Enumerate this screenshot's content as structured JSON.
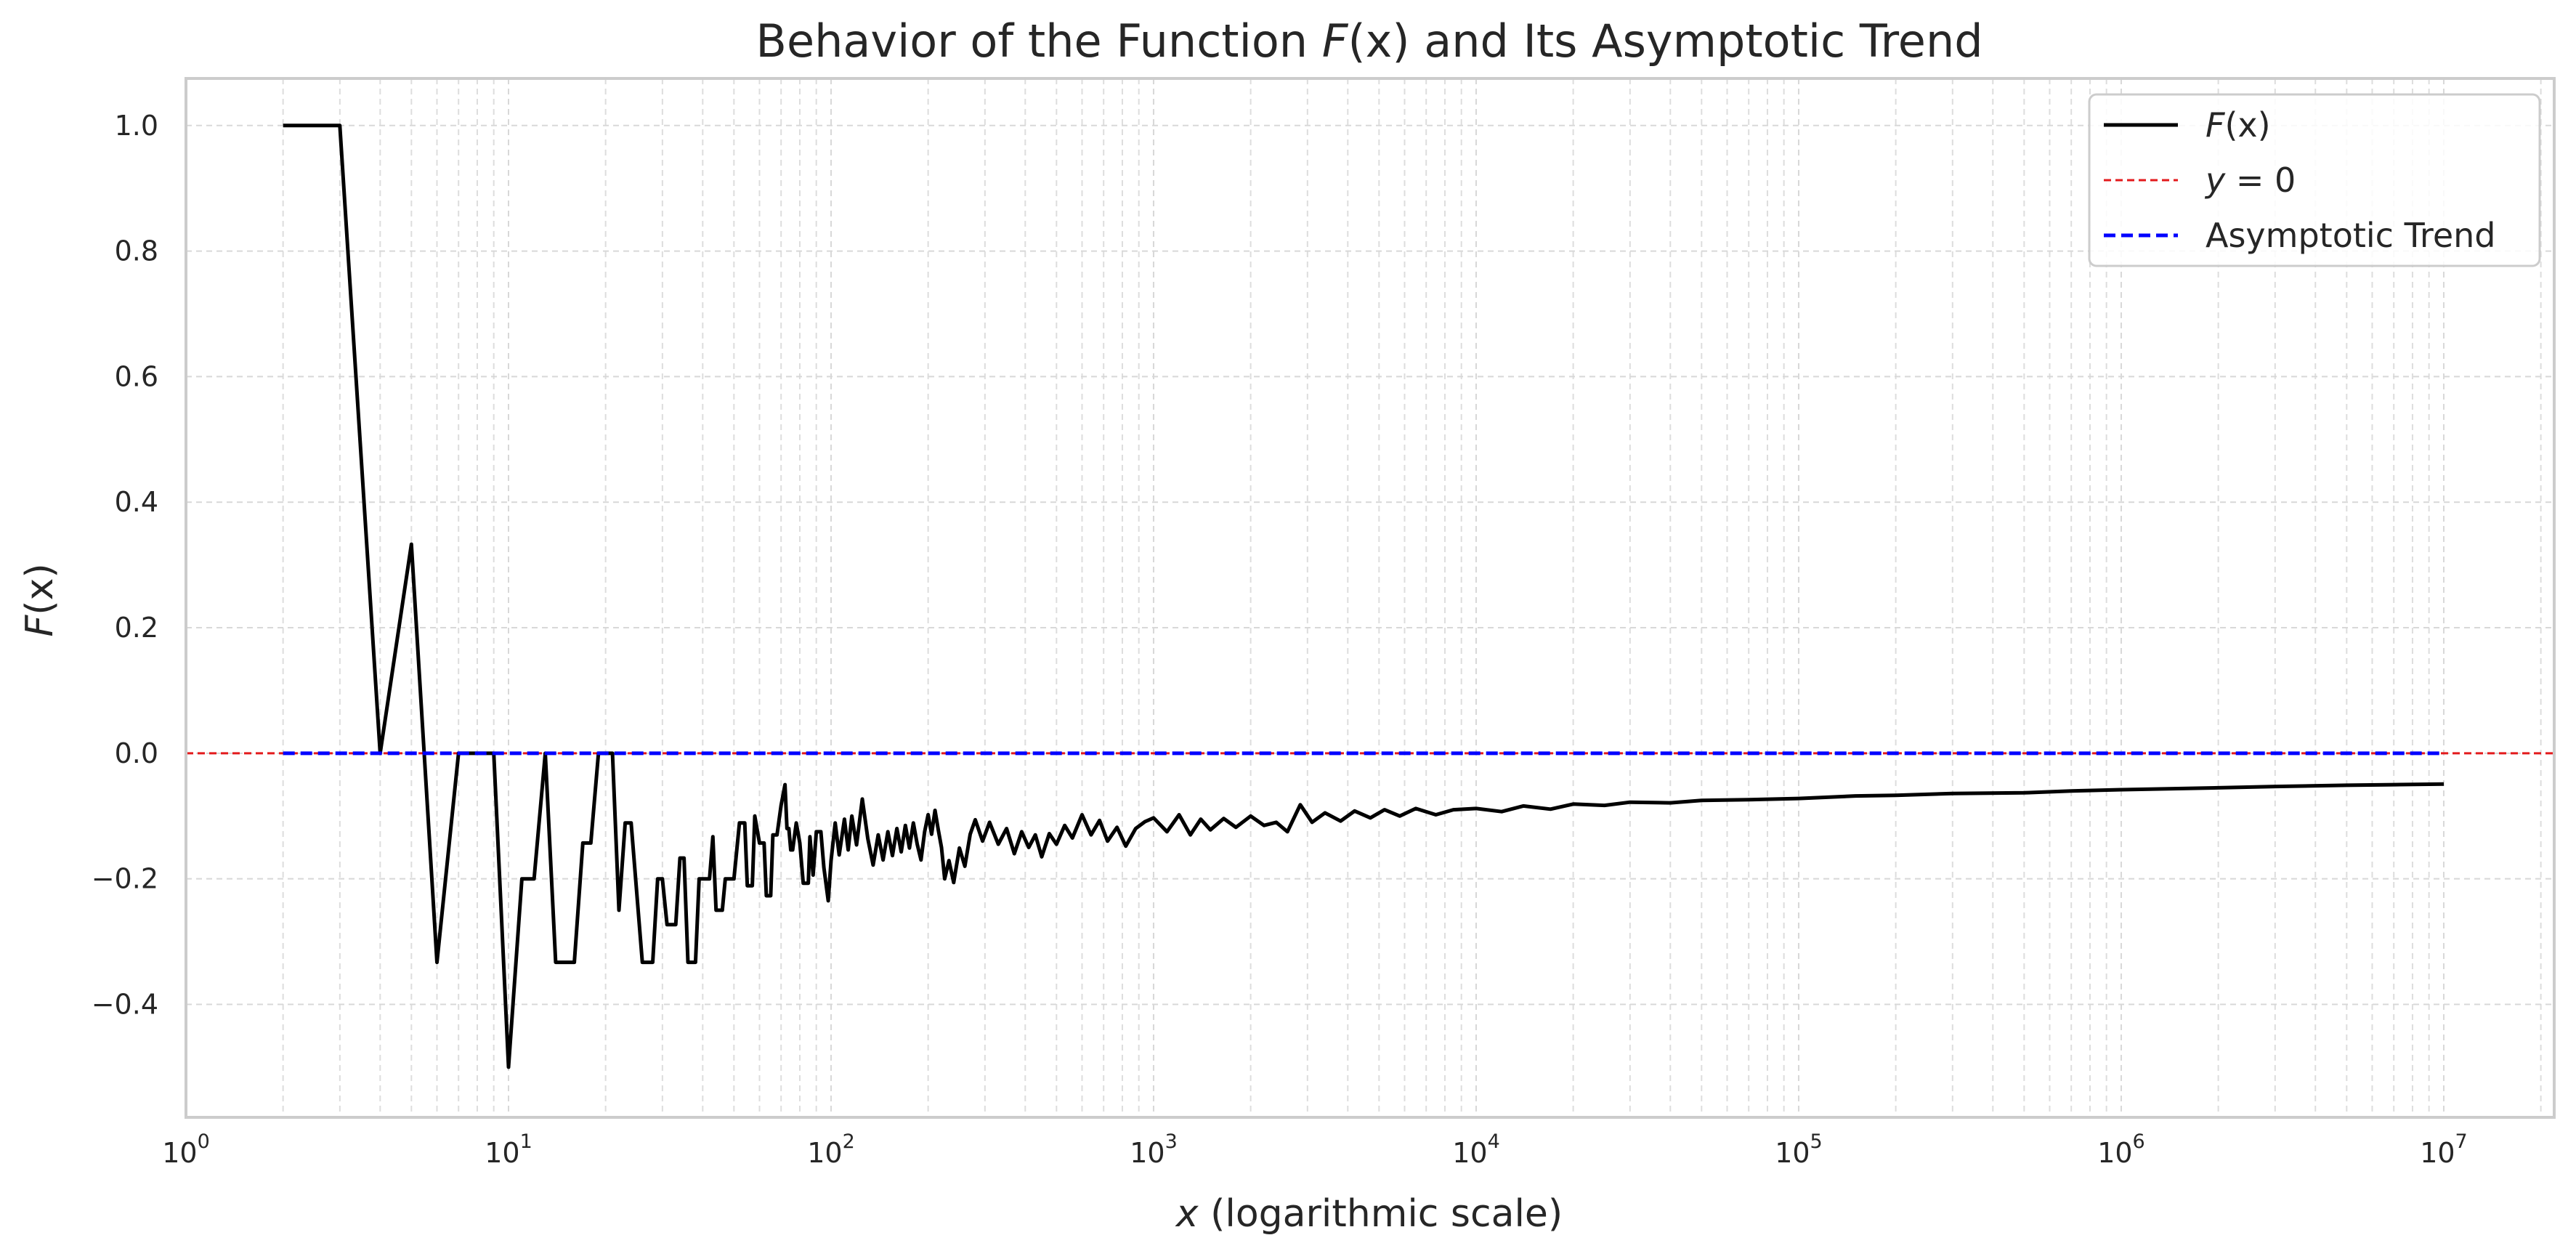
{
  "chart_data": {
    "type": "line",
    "title": {
      "pre": "Behavior of the Function ",
      "fn": "F",
      "fn_arg": "(x)",
      "post": " and Its Asymptotic Trend"
    },
    "xlabel": {
      "var": "x",
      "rest": " (logarithmic scale)"
    },
    "ylabel": {
      "fn": "F",
      "arg": "(x)"
    },
    "x_scale": "log",
    "xlim": [
      1,
      22000000
    ],
    "ylim": [
      -0.58,
      1.075
    ],
    "x_ticks": [
      {
        "base": "10",
        "exp": "0",
        "value": 1
      },
      {
        "base": "10",
        "exp": "1",
        "value": 10
      },
      {
        "base": "10",
        "exp": "2",
        "value": 100
      },
      {
        "base": "10",
        "exp": "3",
        "value": 1000
      },
      {
        "base": "10",
        "exp": "4",
        "value": 10000
      },
      {
        "base": "10",
        "exp": "5",
        "value": 100000
      },
      {
        "base": "10",
        "exp": "6",
        "value": 1000000
      },
      {
        "base": "10",
        "exp": "7",
        "value": 10000000
      }
    ],
    "y_ticks": [
      {
        "value": 1.0,
        "label": "1.0"
      },
      {
        "value": 0.8,
        "label": "0.8"
      },
      {
        "value": 0.6,
        "label": "0.6"
      },
      {
        "value": 0.4,
        "label": "0.4"
      },
      {
        "value": 0.2,
        "label": "0.2"
      },
      {
        "value": 0.0,
        "label": "0.0"
      },
      {
        "value": -0.2,
        "label": "−0.2"
      },
      {
        "value": -0.4,
        "label": "−0.4"
      }
    ],
    "grid": true,
    "legend_position": "top-right",
    "series": [
      {
        "key": "fx",
        "legend": {
          "fn": "F",
          "arg": "(x)"
        },
        "color": "#000000",
        "style": "solid",
        "points": [
          [
            2,
            1.0
          ],
          [
            3,
            1.0
          ],
          [
            4,
            0.0
          ],
          [
            5,
            0.333
          ],
          [
            6,
            -0.333
          ],
          [
            7,
            0.0
          ],
          [
            8,
            0.0
          ],
          [
            9,
            0.0
          ],
          [
            10,
            -0.5
          ],
          [
            11,
            -0.2
          ],
          [
            12,
            -0.2
          ],
          [
            13,
            0.0
          ],
          [
            14,
            -0.333
          ],
          [
            15,
            -0.333
          ],
          [
            16,
            -0.333
          ],
          [
            17,
            -0.143
          ],
          [
            18,
            -0.143
          ],
          [
            19,
            0.0
          ],
          [
            20,
            0.0
          ],
          [
            21,
            0.0
          ],
          [
            22,
            -0.25
          ],
          [
            23,
            -0.111
          ],
          [
            24,
            -0.111
          ],
          [
            26,
            -0.333
          ],
          [
            28,
            -0.333
          ],
          [
            29,
            -0.2
          ],
          [
            30,
            -0.2
          ],
          [
            31,
            -0.273
          ],
          [
            33,
            -0.273
          ],
          [
            34,
            -0.167
          ],
          [
            35,
            -0.167
          ],
          [
            36,
            -0.333
          ],
          [
            38,
            -0.333
          ],
          [
            39,
            -0.2
          ],
          [
            40,
            -0.2
          ],
          [
            41,
            -0.2
          ],
          [
            42,
            -0.2
          ],
          [
            43,
            -0.133
          ],
          [
            44,
            -0.25
          ],
          [
            46,
            -0.25
          ],
          [
            47,
            -0.2
          ],
          [
            50,
            -0.2
          ],
          [
            52,
            -0.111
          ],
          [
            54,
            -0.111
          ],
          [
            55,
            -0.211
          ],
          [
            57,
            -0.211
          ],
          [
            58,
            -0.1
          ],
          [
            60,
            -0.143
          ],
          [
            62,
            -0.143
          ],
          [
            63,
            -0.227
          ],
          [
            65,
            -0.227
          ],
          [
            66,
            -0.13
          ],
          [
            68,
            -0.13
          ],
          [
            70,
            -0.083
          ],
          [
            72,
            -0.05
          ],
          [
            73,
            -0.12
          ],
          [
            74,
            -0.12
          ],
          [
            75,
            -0.154
          ],
          [
            76,
            -0.154
          ],
          [
            78,
            -0.111
          ],
          [
            80,
            -0.143
          ],
          [
            82,
            -0.207
          ],
          [
            85,
            -0.207
          ],
          [
            86,
            -0.133
          ],
          [
            88,
            -0.194
          ],
          [
            90,
            -0.125
          ],
          [
            93,
            -0.125
          ],
          [
            95,
            -0.182
          ],
          [
            98,
            -0.235
          ],
          [
            100,
            -0.171
          ],
          [
            103,
            -0.111
          ],
          [
            106,
            -0.162
          ],
          [
            110,
            -0.105
          ],
          [
            113,
            -0.154
          ],
          [
            116,
            -0.1
          ],
          [
            120,
            -0.146
          ],
          [
            125,
            -0.073
          ],
          [
            130,
            -0.136
          ],
          [
            135,
            -0.178
          ],
          [
            140,
            -0.13
          ],
          [
            145,
            -0.17
          ],
          [
            150,
            -0.125
          ],
          [
            155,
            -0.163
          ],
          [
            160,
            -0.12
          ],
          [
            165,
            -0.157
          ],
          [
            170,
            -0.115
          ],
          [
            175,
            -0.151
          ],
          [
            180,
            -0.111
          ],
          [
            185,
            -0.145
          ],
          [
            190,
            -0.17
          ],
          [
            195,
            -0.125
          ],
          [
            200,
            -0.098
          ],
          [
            205,
            -0.129
          ],
          [
            210,
            -0.091
          ],
          [
            215,
            -0.122
          ],
          [
            220,
            -0.15
          ],
          [
            225,
            -0.2
          ],
          [
            232,
            -0.171
          ],
          [
            240,
            -0.206
          ],
          [
            250,
            -0.151
          ],
          [
            260,
            -0.18
          ],
          [
            270,
            -0.129
          ],
          [
            280,
            -0.106
          ],
          [
            295,
            -0.14
          ],
          [
            310,
            -0.11
          ],
          [
            330,
            -0.145
          ],
          [
            350,
            -0.12
          ],
          [
            370,
            -0.16
          ],
          [
            390,
            -0.125
          ],
          [
            410,
            -0.15
          ],
          [
            430,
            -0.13
          ],
          [
            450,
            -0.165
          ],
          [
            475,
            -0.128
          ],
          [
            500,
            -0.145
          ],
          [
            530,
            -0.115
          ],
          [
            560,
            -0.135
          ],
          [
            600,
            -0.098
          ],
          [
            640,
            -0.13
          ],
          [
            680,
            -0.107
          ],
          [
            720,
            -0.14
          ],
          [
            770,
            -0.118
          ],
          [
            820,
            -0.148
          ],
          [
            880,
            -0.12
          ],
          [
            940,
            -0.109
          ],
          [
            1000,
            -0.103
          ],
          [
            1100,
            -0.125
          ],
          [
            1200,
            -0.098
          ],
          [
            1300,
            -0.13
          ],
          [
            1400,
            -0.105
          ],
          [
            1500,
            -0.122
          ],
          [
            1650,
            -0.104
          ],
          [
            1800,
            -0.118
          ],
          [
            2000,
            -0.1
          ],
          [
            2200,
            -0.115
          ],
          [
            2400,
            -0.11
          ],
          [
            2600,
            -0.125
          ],
          [
            2850,
            -0.082
          ],
          [
            3100,
            -0.11
          ],
          [
            3400,
            -0.095
          ],
          [
            3800,
            -0.108
          ],
          [
            4200,
            -0.092
          ],
          [
            4700,
            -0.103
          ],
          [
            5200,
            -0.09
          ],
          [
            5800,
            -0.1
          ],
          [
            6500,
            -0.088
          ],
          [
            7500,
            -0.098
          ],
          [
            8500,
            -0.09
          ],
          [
            10000,
            -0.088
          ],
          [
            12000,
            -0.093
          ],
          [
            14000,
            -0.084
          ],
          [
            17000,
            -0.089
          ],
          [
            20000,
            -0.081
          ],
          [
            25000,
            -0.083
          ],
          [
            30000,
            -0.078
          ],
          [
            40000,
            -0.079
          ],
          [
            50000,
            -0.075
          ],
          [
            70000,
            -0.074
          ],
          [
            100000,
            -0.072
          ],
          [
            150000,
            -0.068
          ],
          [
            200000,
            -0.067
          ],
          [
            300000,
            -0.064
          ],
          [
            500000,
            -0.063
          ],
          [
            700000,
            -0.06
          ],
          [
            1000000,
            -0.058
          ],
          [
            2000000,
            -0.055
          ],
          [
            3000000,
            -0.053
          ],
          [
            5000000,
            -0.051
          ],
          [
            7000000,
            -0.05
          ],
          [
            10000000,
            -0.049
          ]
        ]
      },
      {
        "key": "zero",
        "legend": {
          "var": "y",
          "rest": " = 0"
        },
        "color": "#e31a1c",
        "style": "dashed",
        "points": [
          [
            1,
            0.0
          ],
          [
            22000000,
            0.0
          ]
        ]
      },
      {
        "key": "trend",
        "legend": {
          "text": "Asymptotic Trend"
        },
        "color": "#0000ff",
        "style": "dashed",
        "points": [
          [
            2,
            0.0
          ],
          [
            10000000,
            0.0
          ]
        ]
      }
    ]
  }
}
